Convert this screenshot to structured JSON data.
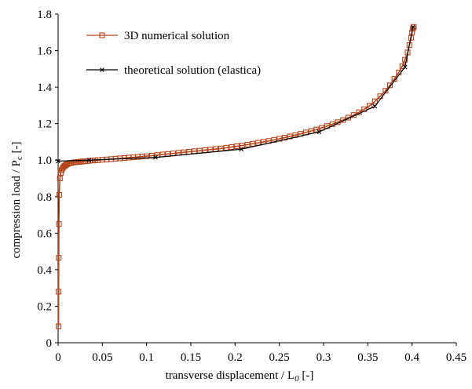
{
  "chart_data": {
    "type": "line",
    "title": "",
    "xlabel": {
      "main": "transverse displacement / L",
      "sub": "0",
      "suffix": " [-]"
    },
    "ylabel": {
      "main": "compression load / P",
      "sub": "c",
      "suffix": " [-]"
    },
    "xlim": [
      0,
      0.45
    ],
    "ylim": [
      0,
      1.8
    ],
    "xticks": [
      "0",
      "0.05",
      "0.1",
      "0.15",
      "0.2",
      "0.25",
      "0.3",
      "0.35",
      "0.4",
      "0.45"
    ],
    "yticks": [
      "0",
      "0.2",
      "0.4",
      "0.6",
      "0.8",
      "1.0",
      "1.2",
      "1.4",
      "1.6",
      "1.8"
    ],
    "grid": false,
    "legend_position": "top-left",
    "series": [
      {
        "name": "3D numerical solution",
        "color": "#b5451b",
        "marker": "square",
        "x": [
          0.0005,
          0.0006,
          0.0007,
          0.0009,
          0.0013,
          0.002,
          0.003,
          0.004,
          0.005,
          0.006,
          0.007,
          0.008,
          0.009,
          0.01,
          0.012,
          0.014,
          0.016,
          0.018,
          0.02,
          0.022,
          0.024,
          0.026,
          0.028,
          0.03,
          0.033,
          0.036,
          0.039,
          0.042,
          0.045,
          0.05,
          0.055,
          0.06,
          0.065,
          0.07,
          0.075,
          0.08,
          0.085,
          0.09,
          0.095,
          0.1,
          0.106,
          0.112,
          0.118,
          0.124,
          0.13,
          0.136,
          0.142,
          0.148,
          0.154,
          0.16,
          0.166,
          0.172,
          0.178,
          0.184,
          0.19,
          0.196,
          0.202,
          0.208,
          0.214,
          0.22,
          0.226,
          0.232,
          0.238,
          0.244,
          0.25,
          0.256,
          0.262,
          0.268,
          0.274,
          0.28,
          0.286,
          0.292,
          0.298,
          0.304,
          0.31,
          0.316,
          0.322,
          0.328,
          0.334,
          0.34,
          0.346,
          0.352,
          0.358,
          0.364,
          0.37,
          0.375,
          0.38,
          0.385,
          0.389,
          0.392,
          0.395,
          0.397,
          0.399,
          0.4,
          0.401,
          0.402
        ],
        "y": [
          0.09,
          0.28,
          0.465,
          0.65,
          0.81,
          0.9,
          0.93,
          0.945,
          0.955,
          0.962,
          0.967,
          0.971,
          0.974,
          0.977,
          0.981,
          0.984,
          0.986,
          0.988,
          0.989,
          0.99,
          0.991,
          0.992,
          0.993,
          0.994,
          0.995,
          0.997,
          0.998,
          0.999,
          1.0,
          1.002,
          1.004,
          1.006,
          1.008,
          1.01,
          1.012,
          1.014,
          1.016,
          1.018,
          1.02,
          1.022,
          1.025,
          1.028,
          1.031,
          1.034,
          1.037,
          1.04,
          1.043,
          1.046,
          1.049,
          1.052,
          1.055,
          1.058,
          1.061,
          1.064,
          1.068,
          1.072,
          1.076,
          1.08,
          1.085,
          1.09,
          1.095,
          1.1,
          1.105,
          1.111,
          1.117,
          1.123,
          1.13,
          1.137,
          1.144,
          1.152,
          1.16,
          1.168,
          1.177,
          1.187,
          1.197,
          1.208,
          1.22,
          1.233,
          1.247,
          1.262,
          1.279,
          1.298,
          1.322,
          1.35,
          1.38,
          1.41,
          1.445,
          1.48,
          1.515,
          1.55,
          1.59,
          1.63,
          1.67,
          1.7,
          1.72,
          1.73
        ]
      },
      {
        "name": "theoretical solution (elastica)",
        "color": "#000000",
        "marker": "x",
        "x": [
          0,
          0.035,
          0.11,
          0.207,
          0.295,
          0.358,
          0.392,
          0.401
        ],
        "y": [
          0.995,
          1.0,
          1.015,
          1.06,
          1.155,
          1.295,
          1.51,
          1.73
        ]
      }
    ]
  }
}
